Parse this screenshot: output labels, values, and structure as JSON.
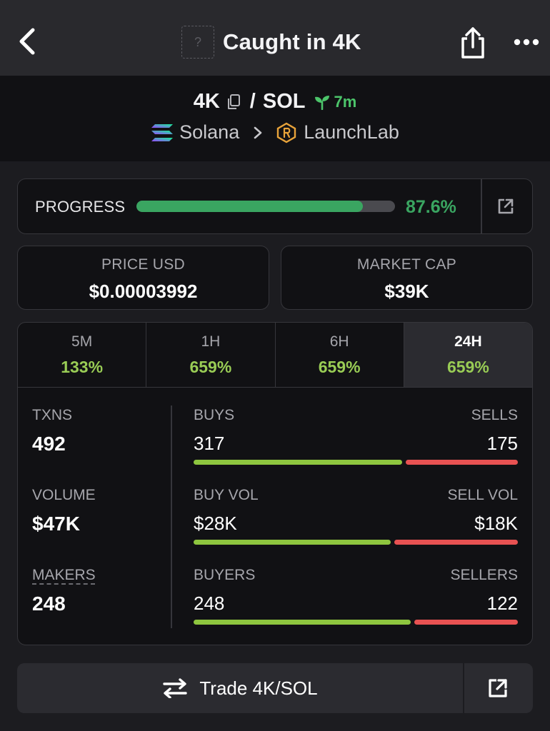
{
  "header": {
    "title": "Caught in 4K",
    "token_placeholder": "?",
    "icons": {
      "back": "chevron-left-icon",
      "share": "share-icon",
      "more": "more-horizontal-icon"
    }
  },
  "pair": {
    "base": "4K",
    "separator": "/",
    "quote": "SOL",
    "age": "7m",
    "chain": "Solana",
    "dex": "LaunchLab"
  },
  "progress": {
    "label": "PROGRESS",
    "percent_text": "87.6%",
    "fill_fraction": 0.876
  },
  "price": {
    "label": "PRICE USD",
    "value": "$0.00003992"
  },
  "market_cap": {
    "label": "MARKET CAP",
    "value": "$39K"
  },
  "tabs": [
    {
      "label": "5M",
      "value": "133%"
    },
    {
      "label": "1H",
      "value": "659%"
    },
    {
      "label": "6H",
      "value": "659%"
    },
    {
      "label": "24H",
      "value": "659%",
      "active": true
    }
  ],
  "metrics": {
    "txns": {
      "label": "TXNS",
      "value": "492"
    },
    "volume": {
      "label": "VOLUME",
      "value": "$47K"
    },
    "makers": {
      "label": "MAKERS",
      "value": "248"
    }
  },
  "breakdown": [
    {
      "left_label": "BUYS",
      "left_value": "317",
      "right_label": "SELLS",
      "right_value": "175",
      "buy_fraction": 0.644
    },
    {
      "left_label": "BUY VOL",
      "left_value": "$28K",
      "right_label": "SELL VOL",
      "right_value": "$18K",
      "buy_fraction": 0.609
    },
    {
      "left_label": "BUYERS",
      "left_value": "248",
      "right_label": "SELLERS",
      "right_value": "122",
      "buy_fraction": 0.67
    }
  ],
  "trade": {
    "label": "Trade 4K/SOL"
  },
  "colors": {
    "accent_green": "#3aa561",
    "change_green": "#99cc55",
    "buy_green": "#8ec63f",
    "sell_red": "#e85252",
    "age_green": "#4cc46a"
  }
}
